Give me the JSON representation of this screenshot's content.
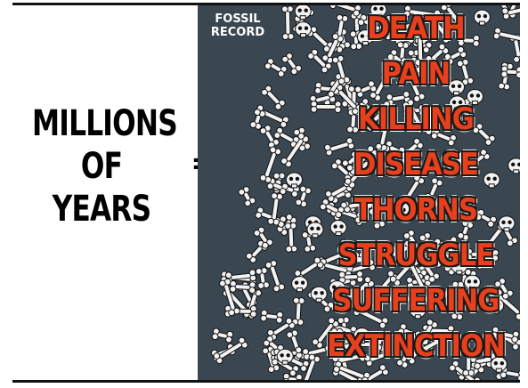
{
  "left": {
    "lines": [
      "MILLIONS",
      "OF",
      "YEARS"
    ],
    "equals": "="
  },
  "panel": {
    "label_lines": [
      "FOSSIL",
      "RECORD"
    ],
    "words": [
      "DEATH",
      "PAIN",
      "KILLING",
      "DISEASE",
      "THORNS",
      "STRUGGLE",
      "SUFFERING",
      "EXTINCTION"
    ],
    "colors": {
      "background": "#3a4650",
      "word_fill": "#e8401c",
      "bones": "#f2f2f2"
    }
  }
}
